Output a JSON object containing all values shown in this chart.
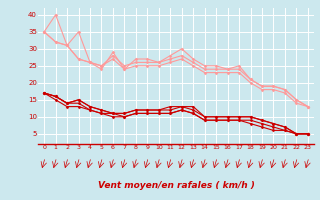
{
  "bg_color": "#cce8ee",
  "grid_color": "#ffffff",
  "line_color_light": "#ff9999",
  "line_color_dark": "#cc0000",
  "xlabel": "Vent moyen/en rafales ( km/h )",
  "xlabel_color": "#cc0000",
  "tick_label_color": "#cc0000",
  "x_ticks": [
    0,
    1,
    2,
    3,
    4,
    5,
    6,
    7,
    8,
    9,
    10,
    11,
    12,
    13,
    14,
    15,
    16,
    17,
    18,
    19,
    20,
    21,
    22,
    23
  ],
  "ylim": [
    2,
    42
  ],
  "xlim": [
    -0.5,
    23.5
  ],
  "y_ticks": [
    5,
    10,
    15,
    20,
    25,
    30,
    35,
    40
  ],
  "series_light": [
    [
      35,
      40,
      31,
      35,
      26,
      24,
      29,
      24,
      27,
      27,
      26,
      28,
      30,
      27,
      25,
      25,
      24,
      25,
      21,
      19,
      19,
      18,
      15,
      13
    ],
    [
      35,
      32,
      31,
      27,
      26,
      25,
      28,
      25,
      26,
      26,
      26,
      27,
      28,
      26,
      24,
      24,
      24,
      24,
      21,
      19,
      19,
      18,
      15,
      13
    ],
    [
      35,
      32,
      31,
      27,
      26,
      25,
      27,
      24,
      25,
      25,
      25,
      26,
      27,
      25,
      23,
      23,
      23,
      23,
      20,
      18,
      18,
      17,
      14,
      13
    ]
  ],
  "series_dark": [
    [
      17,
      16,
      14,
      15,
      13,
      12,
      11,
      11,
      12,
      12,
      12,
      13,
      13,
      13,
      10,
      10,
      10,
      10,
      10,
      9,
      8,
      7,
      5,
      5
    ],
    [
      17,
      16,
      14,
      15,
      13,
      12,
      11,
      11,
      12,
      12,
      12,
      12,
      13,
      12,
      10,
      10,
      10,
      10,
      10,
      9,
      8,
      7,
      5,
      5
    ],
    [
      17,
      16,
      14,
      14,
      12,
      11,
      11,
      10,
      11,
      11,
      11,
      11,
      12,
      11,
      9,
      9,
      9,
      9,
      9,
      8,
      7,
      6,
      5,
      5
    ],
    [
      17,
      15,
      13,
      13,
      12,
      11,
      10,
      10,
      11,
      11,
      11,
      11,
      12,
      11,
      9,
      9,
      9,
      9,
      8,
      7,
      6,
      6,
      5,
      5
    ]
  ],
  "marker_size": 1.5,
  "line_width": 0.8
}
